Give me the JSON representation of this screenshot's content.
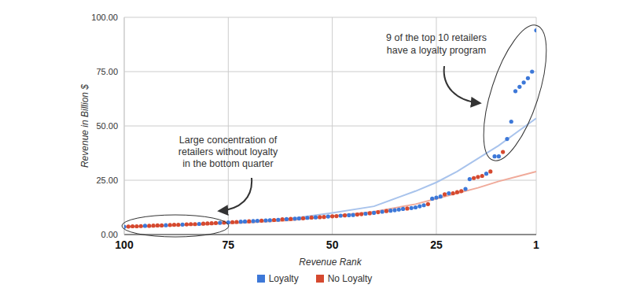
{
  "chart_data": {
    "type": "scatter",
    "x_label": "Revenue Rank",
    "y_label": "Revenue in Billion $",
    "x": [
      1,
      2,
      3,
      4,
      5,
      6,
      7,
      8,
      9,
      10,
      11,
      12,
      13,
      14,
      15,
      16,
      17,
      18,
      19,
      20,
      21,
      22,
      23,
      24,
      25,
      26,
      27,
      28,
      29,
      30,
      31,
      32,
      33,
      34,
      35,
      36,
      37,
      38,
      39,
      40,
      41,
      42,
      43,
      44,
      45,
      46,
      47,
      48,
      49,
      50,
      51,
      52,
      53,
      54,
      55,
      56,
      57,
      58,
      59,
      60,
      61,
      62,
      63,
      64,
      65,
      66,
      67,
      68,
      69,
      70,
      71,
      72,
      73,
      74,
      75,
      76,
      77,
      78,
      79,
      80,
      81,
      82,
      83,
      84,
      85,
      86,
      87,
      88,
      89,
      90,
      91,
      92,
      93,
      94,
      95,
      96,
      97,
      98,
      99,
      100
    ],
    "series": [
      {
        "name": "Loyalty",
        "color": "#3d78d8",
        "marker": "circle",
        "values": [
          94,
          75,
          72,
          70,
          68,
          66,
          52,
          44,
          null,
          36,
          36,
          null,
          28,
          null,
          null,
          null,
          25.5,
          21,
          null,
          null,
          null,
          19,
          null,
          17.5,
          17,
          16.5,
          null,
          13.5,
          13,
          12.5,
          12.2,
          null,
          11.8,
          11.5,
          11.2,
          11,
          null,
          10.5,
          null,
          10,
          null,
          9.6,
          null,
          null,
          9,
          8.9,
          null,
          8.7,
          null,
          null,
          8.3,
          null,
          null,
          7.9,
          null,
          7.7,
          null,
          7.4,
          7.3,
          null,
          7.1,
          null,
          6.8,
          null,
          6.6,
          6.5,
          null,
          6.3,
          6.2,
          null,
          6,
          5.9,
          null,
          null,
          5.6,
          null,
          5.4,
          null,
          null,
          null,
          null,
          4.9,
          null,
          null,
          null,
          4.6,
          null,
          null,
          null,
          4.3,
          null,
          null,
          null,
          null,
          4,
          null,
          null,
          null,
          null,
          3.6
        ],
        "trend": {
          "color": "#a8c3ec",
          "x": [
            100,
            90,
            80,
            70,
            60,
            50,
            40,
            30,
            25,
            20,
            15,
            10,
            5,
            1
          ],
          "values": [
            3.5,
            4,
            5,
            6,
            7.3,
            10,
            13,
            20,
            24,
            29,
            35,
            41,
            48,
            53.5
          ]
        }
      },
      {
        "name": "No Loyalty",
        "color": "#d5492f",
        "marker": "circle",
        "values": [
          null,
          null,
          null,
          null,
          null,
          null,
          null,
          null,
          38,
          null,
          null,
          29,
          null,
          27,
          26.5,
          26,
          null,
          null,
          20,
          19.5,
          19,
          null,
          18.5,
          null,
          null,
          null,
          14,
          null,
          null,
          null,
          null,
          12,
          null,
          null,
          null,
          null,
          10.8,
          null,
          10.3,
          null,
          9.8,
          null,
          9.4,
          9.2,
          null,
          null,
          8.8,
          null,
          8.5,
          8.4,
          null,
          8.1,
          8,
          null,
          7.8,
          null,
          7.5,
          null,
          null,
          7.2,
          null,
          7,
          null,
          6.7,
          null,
          null,
          6.4,
          null,
          null,
          6.1,
          null,
          null,
          5.8,
          5.7,
          null,
          5.5,
          null,
          5.3,
          5.2,
          5.1,
          5,
          null,
          4.8,
          4.8,
          4.7,
          null,
          4.5,
          4.5,
          4.4,
          null,
          4.2,
          4.2,
          4.1,
          4,
          null,
          3.9,
          3.8,
          3.8,
          3.7,
          null
        ],
        "trend": {
          "color": "#f0aa9a",
          "x": [
            100,
            90,
            80,
            70,
            60,
            50,
            40,
            30,
            25,
            20,
            15,
            10,
            5,
            1
          ],
          "values": [
            3.5,
            4,
            4.7,
            5.5,
            6.5,
            8.5,
            10.5,
            14,
            16.5,
            19,
            21.5,
            24.5,
            27,
            29
          ]
        }
      }
    ],
    "xlim": [
      100,
      1
    ],
    "xticks": [
      100,
      75,
      50,
      25,
      1
    ],
    "ylim": [
      0,
      100
    ],
    "yticks": [
      {
        "value": 0,
        "label": "0.00"
      },
      {
        "value": 25,
        "label": "25.00"
      },
      {
        "value": 50,
        "label": "50.00"
      },
      {
        "value": 75,
        "label": "75.00"
      },
      {
        "value": 100,
        "label": "100.00"
      }
    ],
    "grid": true,
    "legend": "bottom",
    "annotations": [
      {
        "text": [
          "9 of the top 10 retailers",
          "have a loyalty program"
        ]
      },
      {
        "text": [
          "Large concentration of",
          "retailers without loyalty",
          "in the bottom quarter"
        ]
      }
    ]
  }
}
